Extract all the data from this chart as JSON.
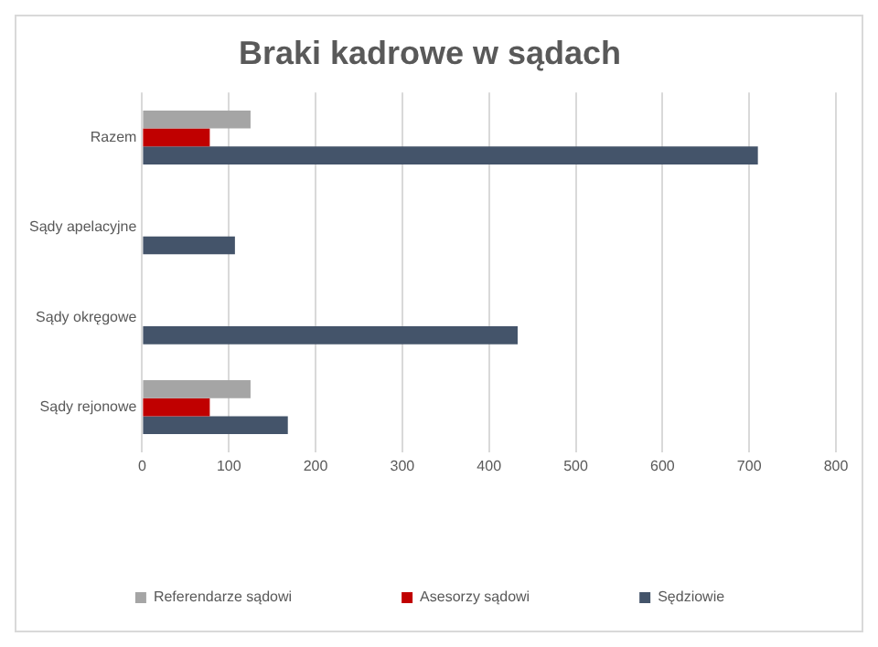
{
  "chart_data": {
    "type": "bar",
    "orientation": "horizontal",
    "title": "Braki kadrowe w sądach",
    "categories": [
      "Razem",
      "Sądy apelacyjne",
      "Sądy okręgowe",
      "Sądy rejonowe"
    ],
    "series": [
      {
        "name": "Referendarze sądowi",
        "color": "#a5a5a5",
        "values": [
          125,
          null,
          null,
          125
        ]
      },
      {
        "name": "Asesorzy sądowi",
        "color": "#c00000",
        "values": [
          78,
          null,
          null,
          78
        ]
      },
      {
        "name": "Sędziowie",
        "color": "#44546a",
        "values": [
          710,
          107,
          433,
          168
        ]
      }
    ],
    "xlim": [
      0,
      800
    ],
    "xticks": [
      0,
      100,
      200,
      300,
      400,
      500,
      600,
      700,
      800
    ],
    "grid": "x",
    "legend": "bottom"
  }
}
